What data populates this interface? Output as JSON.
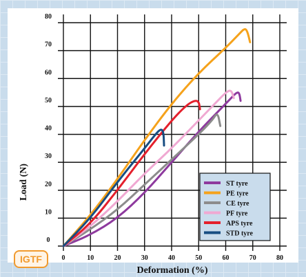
{
  "logo": {
    "text": "IGTF"
  },
  "chart_data": {
    "type": "line",
    "title": "",
    "xlabel": "Deformation (%)",
    "ylabel": "Load (N)",
    "xlim": [
      0,
      80
    ],
    "ylim": [
      0,
      80
    ],
    "x_ticks": [
      "0",
      "10",
      "20",
      "30",
      "40",
      "50",
      "60",
      "70",
      "80"
    ],
    "y_ticks": [
      "0",
      "10",
      "20",
      "30",
      "40",
      "50",
      "60",
      "70",
      "80"
    ],
    "grid": true,
    "legend_position": "bottom-right",
    "series": [
      {
        "name": "ST tyre",
        "color": "#8e3a9e",
        "x": [
          0,
          10,
          20,
          30,
          40,
          50,
          58,
          62,
          64,
          65,
          65.5
        ],
        "y": [
          0,
          4,
          10,
          19,
          30,
          41,
          49,
          53,
          55,
          55,
          52
        ]
      },
      {
        "name": "PE tyre",
        "color": "#f5a21b",
        "x": [
          0,
          10,
          20,
          30,
          40,
          50,
          60,
          65,
          67,
          68,
          69
        ],
        "y": [
          0,
          11,
          24,
          38,
          51,
          62,
          71,
          76,
          78,
          77,
          73
        ]
      },
      {
        "name": "CE tyre",
        "color": "#8c8c8c",
        "x": [
          0,
          10,
          20,
          30,
          40,
          50,
          55,
          57,
          58
        ],
        "y": [
          0,
          6,
          13,
          22,
          31,
          40,
          45,
          48,
          43
        ]
      },
      {
        "name": "PF tyre",
        "color": "#f0a8d2",
        "x": [
          0,
          10,
          20,
          30,
          40,
          50,
          56,
          60,
          62,
          63
        ],
        "y": [
          0,
          7,
          16,
          26,
          35,
          45,
          51,
          55,
          56,
          53
        ]
      },
      {
        "name": "APS tyre",
        "color": "#e4202c",
        "x": [
          0,
          10,
          20,
          30,
          40,
          45,
          48,
          50,
          50.5
        ],
        "y": [
          0,
          8,
          20,
          33,
          45,
          50,
          52,
          52,
          49
        ]
      },
      {
        "name": "STD tyre",
        "color": "#174d82",
        "x": [
          0,
          10,
          20,
          30,
          34,
          36,
          37,
          37.2
        ],
        "y": [
          0,
          10,
          23,
          35,
          40,
          42,
          41,
          36
        ]
      }
    ]
  }
}
